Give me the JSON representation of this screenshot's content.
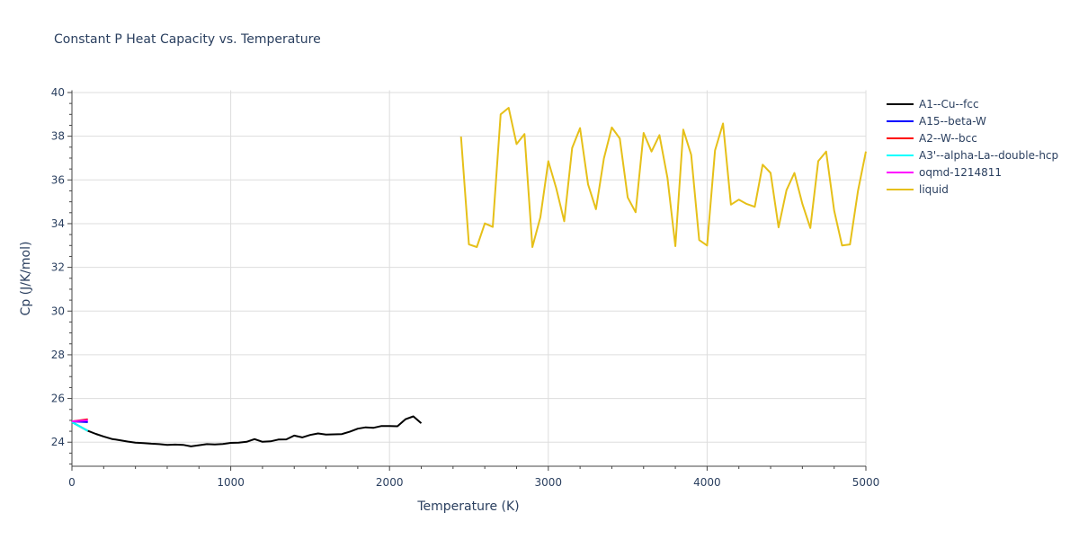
{
  "chart_data": {
    "type": "line",
    "title": "Constant P Heat Capacity vs. Temperature",
    "xlabel": "Temperature (K)",
    "ylabel": "Cp (J/K/mol)",
    "xlim": [
      0,
      5000
    ],
    "ylim": [
      22.9,
      40.1
    ],
    "x_ticks": [
      0,
      1000,
      2000,
      3000,
      4000,
      5000
    ],
    "x_tick_labels": [
      "0",
      "1000",
      "2000",
      "3000",
      "4000",
      "5000"
    ],
    "y_ticks": [
      24,
      26,
      28,
      30,
      32,
      34,
      36,
      38,
      40
    ],
    "y_tick_labels": [
      "24",
      "26",
      "28",
      "30",
      "32",
      "34",
      "36",
      "38",
      "40"
    ],
    "grid": true,
    "legend_position": "right",
    "series": [
      {
        "name": "A1--Cu--fcc",
        "color": "#000000",
        "x": [
          0,
          100,
          150,
          200,
          250,
          300,
          350,
          400,
          450,
          500,
          550,
          600,
          650,
          700,
          750,
          800,
          850,
          900,
          950,
          1000,
          1050,
          1100,
          1150,
          1200,
          1250,
          1300,
          1350,
          1400,
          1450,
          1500,
          1550,
          1600,
          1650,
          1700,
          1750,
          1800,
          1850,
          1900,
          1950,
          2000,
          2050,
          2100,
          2150,
          2200
        ],
        "y": [
          24.92,
          24.52,
          24.38,
          24.26,
          24.15,
          24.09,
          24.03,
          23.98,
          23.96,
          23.93,
          23.91,
          23.88,
          23.89,
          23.88,
          23.81,
          23.86,
          23.91,
          23.9,
          23.92,
          23.97,
          23.98,
          24.02,
          24.14,
          24.02,
          24.04,
          24.12,
          24.13,
          24.3,
          24.22,
          24.33,
          24.4,
          24.35,
          24.36,
          24.37,
          24.48,
          24.62,
          24.68,
          24.66,
          24.74,
          24.74,
          24.73,
          25.05,
          25.18,
          24.87
        ]
      },
      {
        "name": "A15--beta-W",
        "color": "#0000ff",
        "x": [
          0,
          100
        ],
        "y": [
          24.95,
          24.92
        ]
      },
      {
        "name": "A2--W--bcc",
        "color": "#ff0000",
        "x": [
          0,
          100
        ],
        "y": [
          24.95,
          25.05
        ]
      },
      {
        "name": "A3'--alpha-La--double-hcp",
        "color": "#00ffff",
        "x": [
          0,
          100
        ],
        "y": [
          24.92,
          24.52
        ]
      },
      {
        "name": "oqmd-1214811",
        "color": "#ff00ff",
        "x": [
          0,
          100
        ],
        "y": [
          24.95,
          25.0
        ]
      },
      {
        "name": "liquid",
        "color": "#e6c019",
        "x": [
          2450,
          2500,
          2550,
          2600,
          2650,
          2700,
          2750,
          2800,
          2850,
          2900,
          2950,
          3000,
          3050,
          3100,
          3150,
          3200,
          3250,
          3300,
          3350,
          3400,
          3450,
          3500,
          3550,
          3600,
          3650,
          3700,
          3750,
          3800,
          3850,
          3900,
          3950,
          4000,
          4050,
          4100,
          4150,
          4200,
          4250,
          4300,
          4350,
          4400,
          4450,
          4500,
          4550,
          4600,
          4650,
          4700,
          4750,
          4800,
          4850,
          4900,
          4950,
          5000
        ],
        "y": [
          37.98,
          33.05,
          32.93,
          34.01,
          33.85,
          39.0,
          39.3,
          37.64,
          38.1,
          32.93,
          34.3,
          36.86,
          35.62,
          34.11,
          37.46,
          38.37,
          35.8,
          34.66,
          36.98,
          38.4,
          37.9,
          35.2,
          34.52,
          38.15,
          37.3,
          38.05,
          36.1,
          32.97,
          38.3,
          37.15,
          33.25,
          33.0,
          37.35,
          38.58,
          34.87,
          35.1,
          34.9,
          34.77,
          36.7,
          36.32,
          33.83,
          35.53,
          36.32,
          34.9,
          33.8,
          36.86,
          37.3,
          34.6,
          33.0,
          33.05,
          35.5,
          37.3
        ]
      }
    ]
  }
}
